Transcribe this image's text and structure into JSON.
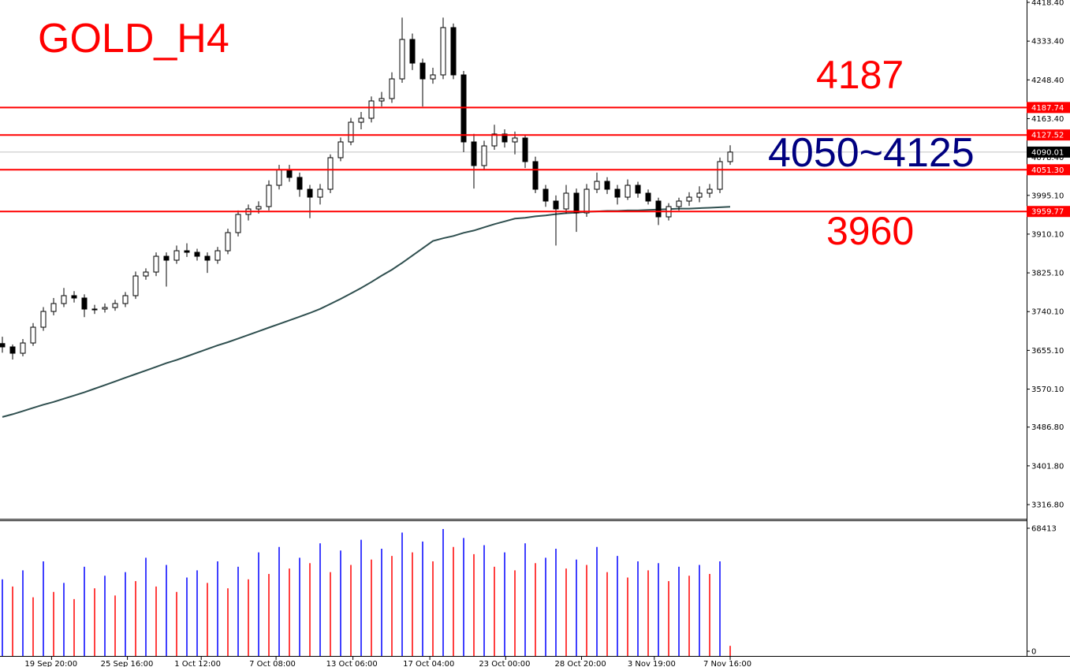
{
  "chart_data": {
    "type": "candlestick",
    "title": "GOLD_H4",
    "title_color": "#ff0000",
    "annotations": [
      {
        "text": "4187",
        "color": "#ff0000"
      },
      {
        "text": "4050~4125",
        "color": "#000080"
      },
      {
        "text": "3960",
        "color": "#ff0000"
      }
    ],
    "candle_color": "#000000",
    "bull_fill": "#ffffff",
    "bear_fill": "#000000",
    "candles": [
      [
        3670,
        3685,
        3650,
        3662.7
      ],
      [
        3662.7,
        3668,
        3635,
        3648.8
      ],
      [
        3648.8,
        3680,
        3642,
        3671.3
      ],
      [
        3671.3,
        3715,
        3665,
        3705.9
      ],
      [
        3705.9,
        3750,
        3698,
        3740.5
      ],
      [
        3740.5,
        3770,
        3732,
        3757.8
      ],
      [
        3757.8,
        3792,
        3750,
        3775.1
      ],
      [
        3775.1,
        3785,
        3760,
        3769.9
      ],
      [
        3769.9,
        3778,
        3728,
        3745.7
      ],
      [
        3745.7,
        3755,
        3735,
        3745.7
      ],
      [
        3745.7,
        3758,
        3738,
        3749.1
      ],
      [
        3749.1,
        3766,
        3742,
        3757.8
      ],
      [
        3757.8,
        3783,
        3750,
        3775.1
      ],
      [
        3775.1,
        3828,
        3768,
        3818.3
      ],
      [
        3818.3,
        3835,
        3810,
        3826.9
      ],
      [
        3826.9,
        3870,
        3818,
        3861.5
      ],
      [
        3861.5,
        3870,
        3795,
        3852.9
      ],
      [
        3852.9,
        3885,
        3845,
        3873.6
      ],
      [
        3873.6,
        3890,
        3860,
        3870.2
      ],
      [
        3870.2,
        3878,
        3852,
        3861.5
      ],
      [
        3861.5,
        3870,
        3825,
        3852.9
      ],
      [
        3852.9,
        3882,
        3845,
        3873.6
      ],
      [
        3873.6,
        3922,
        3866,
        3913.4
      ],
      [
        3913.4,
        3962,
        3905,
        3953.2
      ],
      [
        3953.2,
        3975,
        3940,
        3965.3
      ],
      [
        3965.3,
        3982,
        3955,
        3970.5
      ],
      [
        3970.5,
        4028,
        3962,
        4017.2
      ],
      [
        4017.2,
        4062,
        4008,
        4051.8
      ],
      [
        4051.8,
        4062,
        4025,
        4034.5
      ],
      [
        4034.5,
        4045,
        3992,
        4008.5
      ],
      [
        4008.5,
        4018,
        3945,
        3991.2
      ],
      [
        3991.2,
        4020,
        3975,
        4008.5
      ],
      [
        4008.5,
        4085,
        4000,
        4077.7
      ],
      [
        4077.7,
        4122,
        4070,
        4112.3
      ],
      [
        4112.3,
        4165,
        4105,
        4155.5
      ],
      [
        4155.5,
        4178,
        4140,
        4164.2
      ],
      [
        4164.2,
        4212,
        4155,
        4202.2
      ],
      [
        4202.2,
        4222,
        4190,
        4207.4
      ],
      [
        4207.4,
        4265,
        4198,
        4250.6
      ],
      [
        4250.6,
        4385,
        4242,
        4337.1
      ],
      [
        4337.1,
        4350,
        4270,
        4285.2
      ],
      [
        4285.2,
        4295,
        4190,
        4250.6
      ],
      [
        4250.6,
        4275,
        4240,
        4259.3
      ],
      [
        4259.3,
        4385,
        4250,
        4363.1
      ],
      [
        4363.1,
        4372,
        4250,
        4259.3
      ],
      [
        4259.3,
        4268,
        4090,
        4112.3
      ],
      [
        4112.3,
        4130,
        4010,
        4060.4
      ],
      [
        4060.4,
        4115,
        4050,
        4103.6
      ],
      [
        4103.6,
        4150,
        4095,
        4129.6
      ],
      [
        4129.6,
        4140,
        4100,
        4112.3
      ],
      [
        4112.3,
        4135,
        4085,
        4120.9
      ],
      [
        4120.9,
        4128,
        4055,
        4069.1
      ],
      [
        4069.1,
        4080,
        4000,
        4008.5
      ],
      [
        4008.5,
        4018,
        3970,
        3982.6
      ],
      [
        3982.6,
        3995,
        3885,
        3965.3
      ],
      [
        3965.3,
        4018,
        3955,
        3999.9
      ],
      [
        3999.9,
        4010,
        3915,
        3956.6
      ],
      [
        3956.6,
        4020,
        3948,
        4008.5
      ],
      [
        4008.5,
        4045,
        4000,
        4025.8
      ],
      [
        4025.8,
        4035,
        3998,
        4008.5
      ],
      [
        4008.5,
        4018,
        3975,
        3991.2
      ],
      [
        3991.2,
        4030,
        3985,
        4017.2
      ],
      [
        4017.2,
        4025,
        3990,
        3999.9
      ],
      [
        3999.9,
        4008,
        3975,
        3982.6
      ],
      [
        3982.6,
        3990,
        3930,
        3948.0
      ],
      [
        3948.0,
        3978,
        3940,
        3970.5
      ],
      [
        3970.5,
        3990,
        3962,
        3982.6
      ],
      [
        3982.6,
        4002,
        3972,
        3991.2
      ],
      [
        3991.2,
        4015,
        3980,
        3999.9
      ],
      [
        3999.9,
        4020,
        3990,
        4008.5
      ],
      [
        4008.5,
        4078,
        4000,
        4069.1
      ],
      [
        4069.1,
        4105,
        4062,
        4090.01
      ]
    ],
    "ma": {
      "color": "#2f4f4f",
      "values": [
        3509,
        3515,
        3522,
        3529,
        3536,
        3542,
        3549,
        3556,
        3563,
        3571,
        3579,
        3587,
        3595,
        3603,
        3611,
        3619,
        3627,
        3634,
        3642,
        3650,
        3658,
        3666,
        3673,
        3681,
        3689,
        3697,
        3705,
        3713,
        3721,
        3729,
        3737,
        3746,
        3757,
        3768,
        3780,
        3792,
        3805,
        3819,
        3832,
        3847,
        3863,
        3879,
        3895,
        3901,
        3906,
        3913,
        3918,
        3925,
        3932,
        3938,
        3944,
        3946,
        3949,
        3951,
        3954,
        3956,
        3957,
        3959,
        3960,
        3961,
        3961,
        3962,
        3962,
        3963,
        3964,
        3965,
        3966,
        3966,
        3967,
        3968,
        3969,
        3970
      ]
    },
    "levels": [
      {
        "value": 4187.74,
        "label": "4187.74"
      },
      {
        "value": 4127.52,
        "label": "4127.52"
      },
      {
        "value": 4051.3,
        "label": "4051.30"
      },
      {
        "value": 3959.77,
        "label": "3959.77"
      }
    ],
    "level_color": "#ff0000",
    "last_price": 4090.01,
    "xlim": [
      -0.23,
      99.92
    ],
    "xticks": [
      {
        "value": 4.8,
        "label": "19 Sep 20:00"
      },
      {
        "value": 12.2,
        "label": "25 Sep 16:00"
      },
      {
        "value": 19.4,
        "label": "1 Oct 12:00"
      },
      {
        "value": 26.7,
        "label": "7 Oct 08:00"
      },
      {
        "value": 34.2,
        "label": "13 Oct 06:00"
      },
      {
        "value": 41.7,
        "label": "17 Oct 04:00"
      },
      {
        "value": 49.1,
        "label": "23 Oct 00:00"
      },
      {
        "value": 56.5,
        "label": "28 Oct 20:00"
      },
      {
        "value": 63.6,
        "label": "3 Nov 19:00"
      },
      {
        "value": 71,
        "label": "7 Nov 16:00"
      }
    ],
    "ylim": [
      3285.7,
      4423.6
    ],
    "yticks": [
      {
        "value": 4418.4,
        "label": "4418.40"
      },
      {
        "value": 4333.4,
        "label": "4333.40"
      },
      {
        "value": 4248.4,
        "label": "4248.40"
      },
      {
        "value": 4163.4,
        "label": "4163.40"
      },
      {
        "value": 4078.4,
        "label": "4078.40"
      },
      {
        "value": 3995.1,
        "label": "3995.10"
      },
      {
        "value": 3910.1,
        "label": "3910.10"
      },
      {
        "value": 3825.1,
        "label": "3825.10"
      },
      {
        "value": 3740.1,
        "label": "3740.10"
      },
      {
        "value": 3655.1,
        "label": "3655.10"
      },
      {
        "value": 3570.1,
        "label": "3570.10"
      },
      {
        "value": 3486.8,
        "label": "3486.80"
      },
      {
        "value": 3401.8,
        "label": "3401.80"
      },
      {
        "value": 3316.8,
        "label": "3316.80"
      }
    ],
    "volume": {
      "up_color": "#0000ff",
      "down_color": "#ff0000",
      "ylim": [
        0,
        72800
      ],
      "yticks": [
        68413,
        0
      ],
      "values": [
        40000,
        36000,
        45000,
        30000,
        50000,
        33000,
        38000,
        29000,
        47000,
        35000,
        42000,
        31000,
        44000,
        39000,
        52000,
        36000,
        48000,
        33000,
        41000,
        45000,
        38000,
        50000,
        35000,
        47000,
        40000,
        55000,
        43000,
        58000,
        46000,
        52000,
        49000,
        60000,
        44000,
        56000,
        48000,
        62000,
        51000,
        57000,
        53000,
        66000,
        55000,
        61000,
        50000,
        68000,
        58000,
        63000,
        54000,
        59000,
        47000,
        55000,
        45000,
        60000,
        49000,
        52000,
        57000,
        46000,
        51000,
        48000,
        58000,
        44000,
        53000,
        41000,
        50000,
        45000,
        49000,
        39000,
        47000,
        42000,
        48000,
        43000,
        50000,
        3000
      ]
    }
  }
}
